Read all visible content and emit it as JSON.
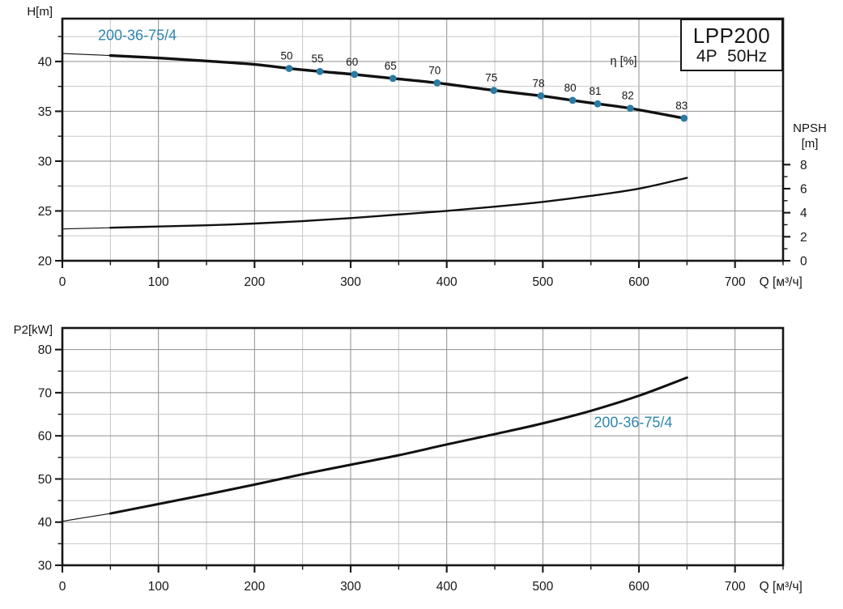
{
  "colors": {
    "background": "#ffffff",
    "accent": "#2e87b0",
    "dot": "#2b7ba3",
    "curve": "#111111",
    "grid_major": "#8f8f8f",
    "grid_minor": "#c7c7c7",
    "frame": "#161616",
    "text": "#161616"
  },
  "model_box": {
    "model": "LPP200",
    "spec": "4P 50Hz"
  },
  "chart_data": [
    {
      "id": "head-npsh-chart",
      "type": "line",
      "xlabel": "Q [м³/ч]",
      "ylabel": "H[m]",
      "y2label_lines": [
        "NPSH",
        "[m]"
      ],
      "xlim": [
        0,
        750
      ],
      "ylim": [
        20,
        44.3
      ],
      "y2lim": [
        0,
        20.15
      ],
      "x_ticks": [
        0,
        100,
        200,
        300,
        400,
        500,
        600,
        700
      ],
      "x_minor_step": 50,
      "y_ticks": [
        20,
        25,
        30,
        35,
        40
      ],
      "y_minor_step": 2.5,
      "y2_ticks": [
        0,
        2,
        4,
        6,
        8
      ],
      "y2_minor_step": 1,
      "grid": true,
      "series": [
        {
          "name": "head-curve",
          "label": "200-36-75/4",
          "label_x": 78,
          "label_y": 42.15,
          "axis": "y",
          "thin_until": 50,
          "width": 3.4,
          "x": [
            0,
            50,
            100,
            150,
            200,
            236,
            268,
            304,
            344,
            390,
            449,
            498,
            531,
            557,
            591,
            647
          ],
          "y": [
            40.8,
            40.6,
            40.35,
            40.05,
            39.7,
            39.3,
            39.0,
            38.7,
            38.3,
            37.85,
            37.1,
            36.55,
            36.1,
            35.75,
            35.3,
            34.3
          ]
        },
        {
          "name": "npsh-curve",
          "label": "",
          "axis": "y2",
          "thin_until": 50,
          "width": 2.4,
          "x": [
            0,
            50,
            100,
            150,
            200,
            250,
            300,
            350,
            400,
            450,
            500,
            550,
            600,
            650
          ],
          "y": [
            2.65,
            2.75,
            2.85,
            2.95,
            3.1,
            3.3,
            3.55,
            3.85,
            4.15,
            4.5,
            4.9,
            5.4,
            6.0,
            6.9
          ]
        }
      ],
      "efficiency": {
        "header": "η [%]",
        "header_x": 584,
        "header_y": 39.67,
        "points": [
          {
            "label": "50",
            "q": 236,
            "h": 39.3
          },
          {
            "label": "55",
            "q": 268,
            "h": 39.0
          },
          {
            "label": "60",
            "q": 304,
            "h": 38.7
          },
          {
            "label": "65",
            "q": 344,
            "h": 38.3
          },
          {
            "label": "70",
            "q": 390,
            "h": 37.85
          },
          {
            "label": "75",
            "q": 449,
            "h": 37.1
          },
          {
            "label": "78",
            "q": 498,
            "h": 36.55
          },
          {
            "label": "80",
            "q": 531,
            "h": 36.1
          },
          {
            "label": "81",
            "q": 557,
            "h": 35.75
          },
          {
            "label": "82",
            "q": 591,
            "h": 35.3
          },
          {
            "label": "83",
            "q": 647,
            "h": 34.3
          }
        ]
      }
    },
    {
      "id": "power-chart",
      "type": "line",
      "xlabel": "Q [м³/ч]",
      "ylabel": "P2[kW]",
      "xlim": [
        0,
        750
      ],
      "ylim": [
        30,
        85
      ],
      "x_ticks": [
        0,
        100,
        200,
        300,
        400,
        500,
        600,
        700
      ],
      "x_minor_step": 50,
      "y_ticks": [
        30,
        40,
        50,
        60,
        70,
        80
      ],
      "y_minor_step": 5,
      "grid": true,
      "series": [
        {
          "name": "power-curve",
          "label": "200-36-75/4",
          "label_x": 594,
          "label_y": 62.0,
          "axis": "y",
          "thin_until": 50,
          "width": 3.0,
          "x": [
            0,
            50,
            100,
            150,
            200,
            250,
            300,
            350,
            400,
            450,
            500,
            550,
            600,
            650
          ],
          "y": [
            40.2,
            42.0,
            44.2,
            46.4,
            48.7,
            51.1,
            53.3,
            55.5,
            58.0,
            60.4,
            62.9,
            65.8,
            69.3,
            73.5
          ]
        }
      ]
    }
  ]
}
